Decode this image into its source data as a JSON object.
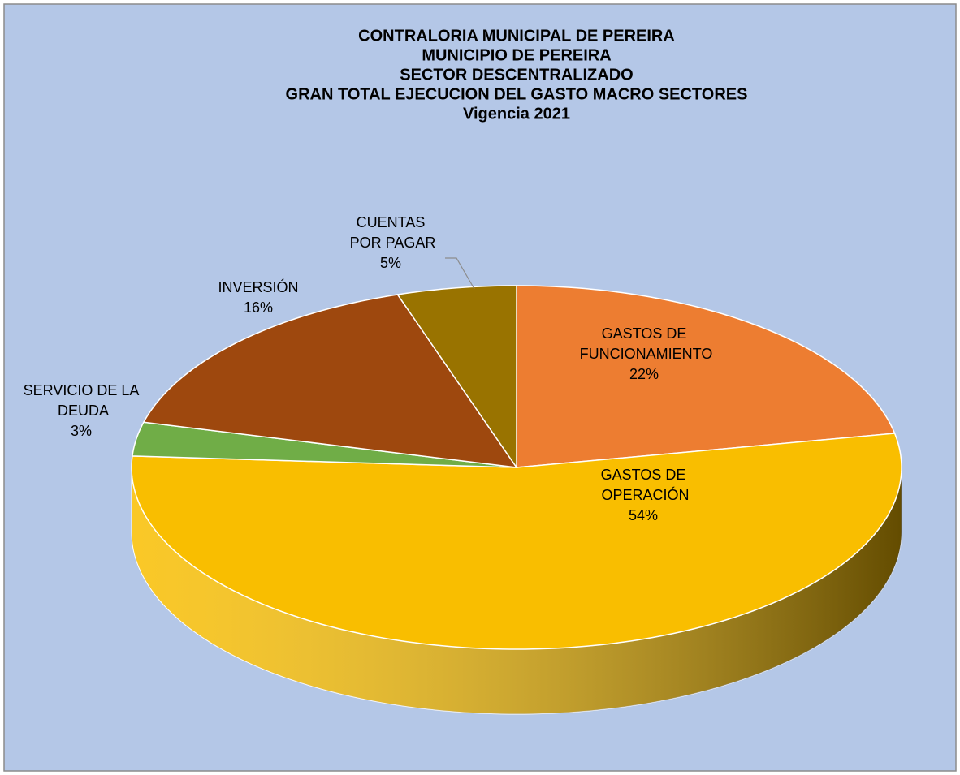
{
  "chart_data": {
    "type": "pie3d",
    "title": [
      "CONTRALORIA MUNICIPAL DE PEREIRA",
      "MUNICIPIO DE PEREIRA",
      "SECTOR DESCENTRALIZADO",
      "GRAN TOTAL EJECUCION DEL GASTO MACRO SECTORES",
      "Vigencia 2021"
    ],
    "categories": [
      "GASTOS DE FUNCIONAMIENTO",
      "GASTOS DE OPERACIÓN",
      "SERVICIO DE LA DEUDA",
      "INVERSIÓN",
      "CUENTAS POR PAGAR"
    ],
    "values": [
      22,
      54,
      3,
      16,
      5
    ],
    "value_labels": [
      "22%",
      "54%",
      "3%",
      "16%",
      "5%"
    ],
    "colors": [
      "#ED7D31",
      "#F9BE00",
      "#70AD47",
      "#9E480E",
      "#997300"
    ]
  }
}
